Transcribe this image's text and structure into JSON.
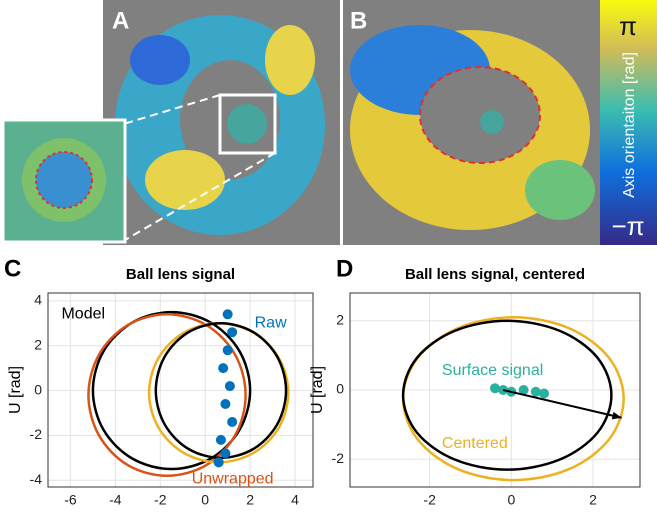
{
  "figure": {
    "panel_labels": [
      "A",
      "B",
      "C",
      "D"
    ],
    "colorbar": {
      "max_label": "π",
      "label": "Axis orientaiton [rad]",
      "min_label": "−π"
    }
  },
  "chart_data": [
    {
      "type": "line",
      "title": "Ball lens signal",
      "ylabel": "U [rad]",
      "xlim": [
        -7,
        4.8
      ],
      "ylim": [
        -4.3,
        4.35
      ],
      "xticks": [
        -6,
        -4,
        -2,
        0,
        2,
        4
      ],
      "yticks": [
        -4,
        -2,
        0,
        2,
        4
      ],
      "grid": true,
      "series": [
        {
          "name": "Model",
          "color": "#000000",
          "x": [
            2.0,
            1.53,
            0.25,
            -1.5,
            -3.25,
            -4.53,
            -5.0,
            -4.53,
            -3.25,
            -1.5,
            0.25,
            1.53
          ],
          "values": [
            0,
            1.75,
            3.03,
            3.5,
            3.03,
            1.75,
            0,
            -1.75,
            -3.03,
            -3.5,
            -3.03,
            -1.75
          ]
        },
        {
          "name": "Unwrapped",
          "color": "#d95319",
          "x": [
            1.8,
            1.33,
            0.05,
            -1.7,
            -3.45,
            -4.73,
            -5.2,
            -4.73,
            -3.45,
            -1.7,
            0.05,
            1.33
          ],
          "values": [
            -0.2,
            1.6,
            2.92,
            3.4,
            2.92,
            1.6,
            -0.2,
            -2.0,
            -3.32,
            -3.8,
            -3.32,
            -2.0
          ]
        },
        {
          "color": "#edb120",
          "x": [
            3.7,
            3.28,
            2.15,
            0.6,
            -0.95,
            -2.08,
            -2.5,
            -2.08,
            -0.95,
            0.6,
            2.15,
            3.28
          ],
          "values": [
            -0.1,
            1.45,
            2.58,
            3.0,
            2.58,
            1.45,
            -0.1,
            -1.65,
            -2.78,
            -3.2,
            -2.78,
            -1.65
          ]
        },
        {
          "color": "#000000",
          "x": [
            3.6,
            3.21,
            2.15,
            0.7,
            -0.75,
            -1.81,
            -2.2,
            -1.81,
            -0.75,
            0.7,
            2.15,
            3.21
          ],
          "values": [
            0,
            1.5,
            2.6,
            3.0,
            2.6,
            1.5,
            0,
            -1.5,
            -2.6,
            -3.0,
            -2.6,
            -1.5
          ]
        },
        {
          "name": "Raw",
          "color": "#0072bd",
          "mode": "markers",
          "x": [
            1.0,
            1.2,
            1.0,
            0.8,
            1.1,
            0.9,
            1.2,
            0.7,
            0.9,
            0.6
          ],
          "values": [
            3.4,
            2.6,
            1.8,
            1.0,
            0.2,
            -0.6,
            -1.4,
            -2.2,
            -2.8,
            -3.2
          ]
        }
      ]
    },
    {
      "type": "line",
      "title": "Ball lens signal, centered",
      "ylabel": "U [rad]",
      "xlim": [
        -3.95,
        3.15
      ],
      "ylim": [
        -2.8,
        2.8
      ],
      "xticks": [
        -2,
        0,
        2
      ],
      "yticks": [
        -2,
        0,
        2
      ],
      "grid": true,
      "series": [
        {
          "name": "Centered",
          "color": "#edb120",
          "x": [
            2.75,
            2.39,
            1.4,
            0.05,
            -1.3,
            -2.29,
            -2.65,
            -2.29,
            -1.3,
            0.05,
            1.4,
            2.39
          ],
          "values": [
            -0.25,
            0.93,
            1.79,
            2.1,
            1.79,
            0.93,
            -0.25,
            -1.43,
            -2.29,
            -2.6,
            -2.29,
            -1.43
          ]
        },
        {
          "color": "#000000",
          "x": [
            2.45,
            2.11,
            1.18,
            -0.1,
            -1.38,
            -2.31,
            -2.65,
            -2.31,
            -1.38,
            -0.1,
            1.18,
            2.11
          ],
          "values": [
            -0.15,
            0.93,
            1.71,
            2.0,
            1.71,
            0.93,
            -0.15,
            -1.23,
            -2.01,
            -2.3,
            -2.01,
            -1.23
          ]
        },
        {
          "name": "Surface signal",
          "color": "#2ab0a0",
          "mode": "markers",
          "x": [
            -0.4,
            -0.2,
            0,
            0.3,
            0.6,
            0.8
          ],
          "values": [
            0.05,
            0,
            -0.05,
            0,
            -0.05,
            -0.1
          ]
        }
      ],
      "arrow": {
        "x": [
          -0.2,
          2.7
        ],
        "values": [
          0,
          -0.8
        ]
      }
    }
  ]
}
